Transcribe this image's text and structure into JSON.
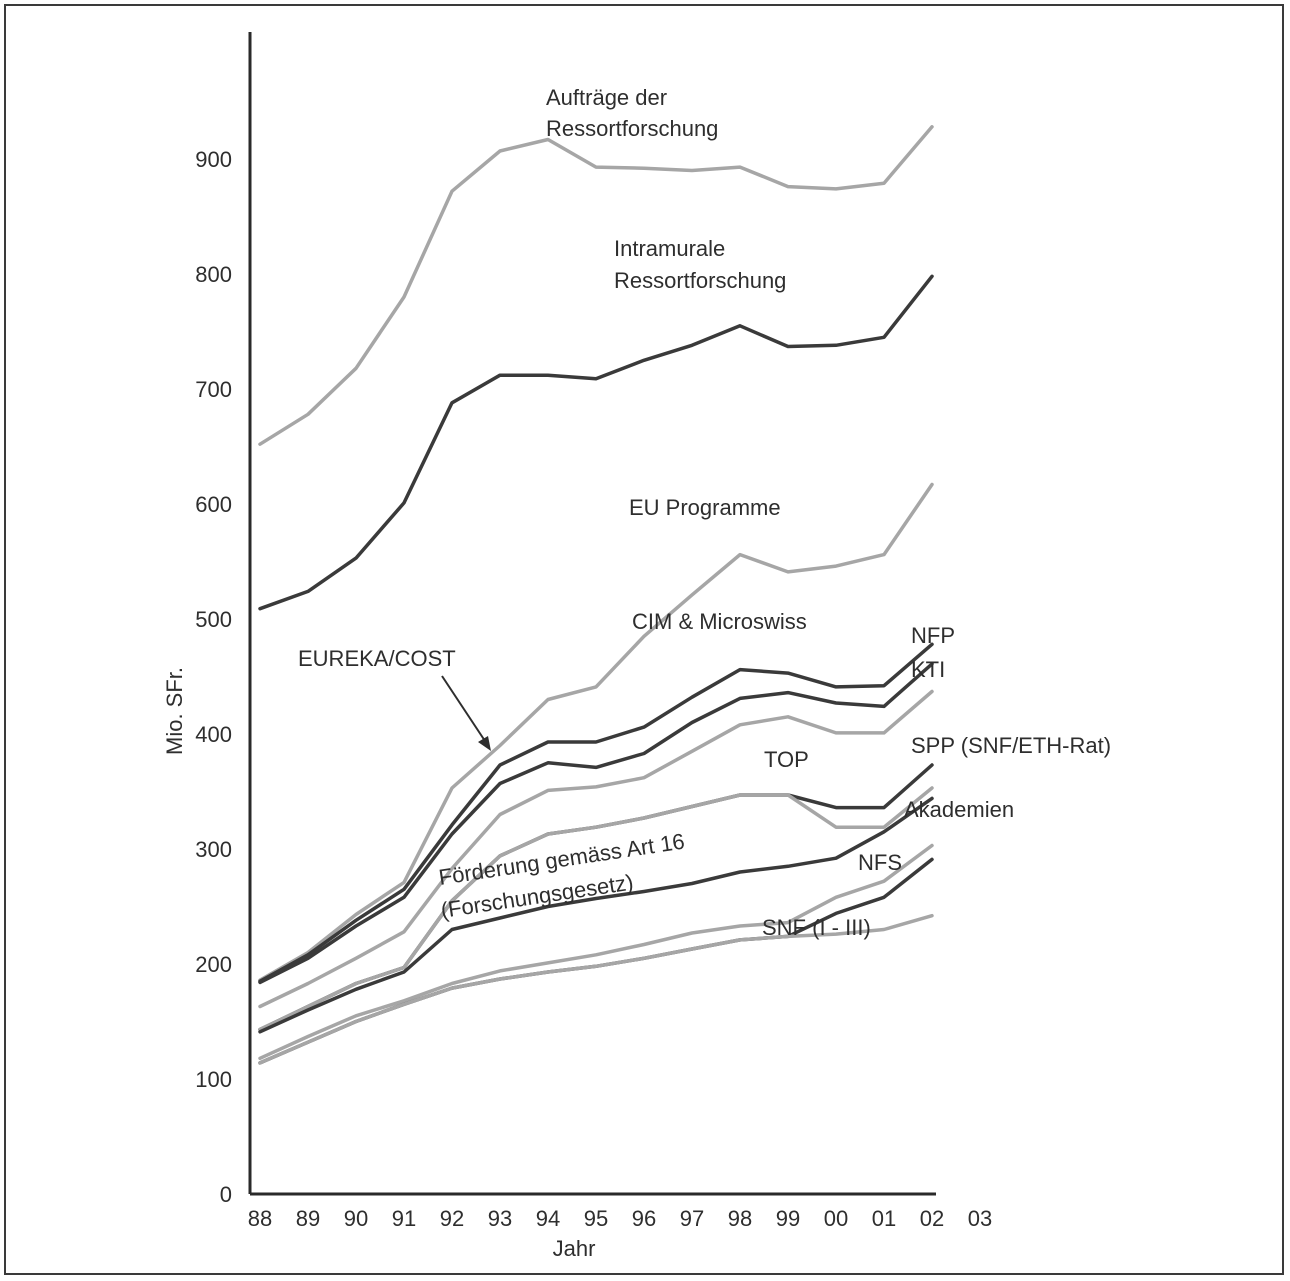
{
  "chart_data": {
    "type": "line",
    "title": "",
    "xlabel": "Jahr",
    "ylabel": "Mio. SFr.",
    "ylim": [
      0,
      1000
    ],
    "yticks": [
      "0",
      "100",
      "200",
      "300",
      "400",
      "500",
      "600",
      "700",
      "800",
      "900"
    ],
    "xticks": [
      "88",
      "89",
      "90",
      "91",
      "92",
      "93",
      "94",
      "95",
      "96",
      "97",
      "98",
      "99",
      "00",
      "01",
      "02",
      "03"
    ],
    "grid": false,
    "legend": "none",
    "colors": {
      "dark": "#3a3a3a",
      "light": "#a6a6a6",
      "axis": "#2a2a2a"
    },
    "series": [
      {
        "name": "Aufträge der Ressortforschung",
        "color": "light",
        "x": [
          0,
          1,
          2,
          3,
          4,
          5,
          6,
          7,
          8,
          9,
          10,
          11,
          12,
          13,
          14
        ],
        "values": [
          652,
          678,
          718,
          780,
          872,
          907,
          917,
          893,
          892,
          890,
          893,
          876,
          874,
          879,
          928
        ]
      },
      {
        "name": "Intramurale Ressortforschung",
        "color": "dark",
        "x": [
          0,
          1,
          2,
          3,
          4,
          5,
          6,
          7,
          8,
          9,
          10,
          11,
          12,
          13,
          14
        ],
        "values": [
          509,
          524,
          553,
          601,
          688,
          712,
          712,
          709,
          725,
          738,
          755,
          737,
          738,
          745,
          798
        ]
      },
      {
        "name": "EU Programme",
        "color": "light",
        "x": [
          0,
          1,
          2,
          3,
          4,
          5,
          6,
          7,
          8,
          9,
          10,
          11,
          12,
          13,
          14
        ],
        "values": [
          186,
          210,
          243,
          271,
          353,
          390,
          430,
          441,
          485,
          521,
          556,
          541,
          546,
          556,
          617
        ]
      },
      {
        "name": "CIM & Microswiss",
        "color": "dark",
        "x": [
          0,
          1,
          2,
          3,
          4,
          5,
          6,
          7,
          8,
          9,
          10,
          11,
          12,
          13,
          14
        ],
        "values": [
          185,
          208,
          238,
          265,
          321,
          373,
          393,
          393,
          406,
          432,
          456,
          453,
          441,
          442,
          478
        ]
      },
      {
        "name": "NFP",
        "color": "dark",
        "x": [
          0,
          1,
          2,
          3,
          4,
          5,
          6,
          7,
          8,
          9,
          10,
          11,
          12,
          13,
          14
        ],
        "values": [
          184,
          205,
          233,
          258,
          313,
          357,
          375,
          371,
          383,
          410,
          431,
          436,
          427,
          424,
          461
        ]
      },
      {
        "name": "KTI",
        "color": "light",
        "x": [
          0,
          1,
          2,
          3,
          4,
          5,
          6,
          7,
          8,
          9,
          10,
          11,
          12,
          13,
          14
        ],
        "values": [
          163,
          183,
          205,
          228,
          283,
          330,
          351,
          354,
          362,
          385,
          408,
          415,
          401,
          401,
          437
        ]
      },
      {
        "name": "TOP",
        "color": "dark",
        "x": [
          0,
          1,
          2,
          3,
          4,
          5,
          6,
          7,
          8,
          9,
          10,
          11,
          12,
          13,
          14
        ],
        "values": [
          143,
          163,
          183,
          197,
          255,
          294,
          313,
          319,
          327,
          337,
          347,
          347,
          336,
          336,
          373
        ]
      },
      {
        "name": "SPP (SNF/ETH-Rat)",
        "color": "light",
        "x": [
          0,
          1,
          2,
          3,
          4,
          5,
          6,
          7,
          8,
          9,
          10,
          11,
          12,
          13,
          14
        ],
        "values": [
          143,
          163,
          183,
          197,
          255,
          294,
          313,
          319,
          327,
          337,
          347,
          347,
          319,
          319,
          353
        ]
      },
      {
        "name": "Förderung gemäss Art 16 (Forschungsgesetz)",
        "color": "dark",
        "x": [
          0,
          1,
          2,
          3,
          4,
          5,
          6,
          7,
          8,
          9,
          10,
          11,
          12,
          13,
          14
        ],
        "values": [
          141,
          160,
          178,
          193,
          230,
          240,
          250,
          257,
          263,
          270,
          280,
          285,
          292,
          315,
          344
        ]
      },
      {
        "name": "Akademien",
        "color": "light",
        "x": [
          0,
          1,
          2,
          3,
          4,
          5,
          6,
          7,
          8,
          9,
          10,
          11,
          12,
          13,
          14
        ],
        "values": [
          118,
          137,
          155,
          168,
          183,
          194,
          201,
          208,
          217,
          227,
          233,
          236,
          258,
          272,
          303
        ]
      },
      {
        "name": "NFS",
        "color": "dark",
        "x": [
          0,
          1,
          2,
          3,
          4,
          5,
          6,
          7,
          8,
          9,
          10,
          11,
          12,
          13,
          14
        ],
        "values": [
          114,
          132,
          150,
          165,
          179,
          187,
          193,
          198,
          205,
          213,
          221,
          224,
          244,
          258,
          291
        ]
      },
      {
        "name": "SNF (I - III)",
        "color": "light",
        "x": [
          0,
          1,
          2,
          3,
          4,
          5,
          6,
          7,
          8,
          9,
          10,
          11,
          12,
          13,
          14
        ],
        "values": [
          114,
          132,
          150,
          165,
          179,
          187,
          193,
          198,
          205,
          213,
          221,
          224,
          226,
          230,
          242
        ]
      }
    ],
    "annotations": [
      {
        "text": "Aufträge der",
        "target": "label"
      },
      {
        "text": "Ressortforschung",
        "target": "label"
      },
      {
        "text": "Intramurale",
        "target": "label"
      },
      {
        "text": "Ressortforschung",
        "target": "label"
      },
      {
        "text": "EU Programme",
        "target": "label"
      },
      {
        "text": "CIM & Microswiss",
        "target": "label"
      },
      {
        "text": "EUREKA/COST",
        "target": "arrow"
      },
      {
        "text": "NFP",
        "target": "label"
      },
      {
        "text": "KTI",
        "target": "label"
      },
      {
        "text": "TOP",
        "target": "label"
      },
      {
        "text": "SPP (SNF/ETH-Rat)",
        "target": "label"
      },
      {
        "text": "Förderung gemäss Art 16",
        "target": "label"
      },
      {
        "text": "(Forschungsgesetz)",
        "target": "label"
      },
      {
        "text": "Akademien",
        "target": "label"
      },
      {
        "text": "NFS",
        "target": "label"
      },
      {
        "text": "SNF (I - III)",
        "target": "label"
      }
    ]
  }
}
